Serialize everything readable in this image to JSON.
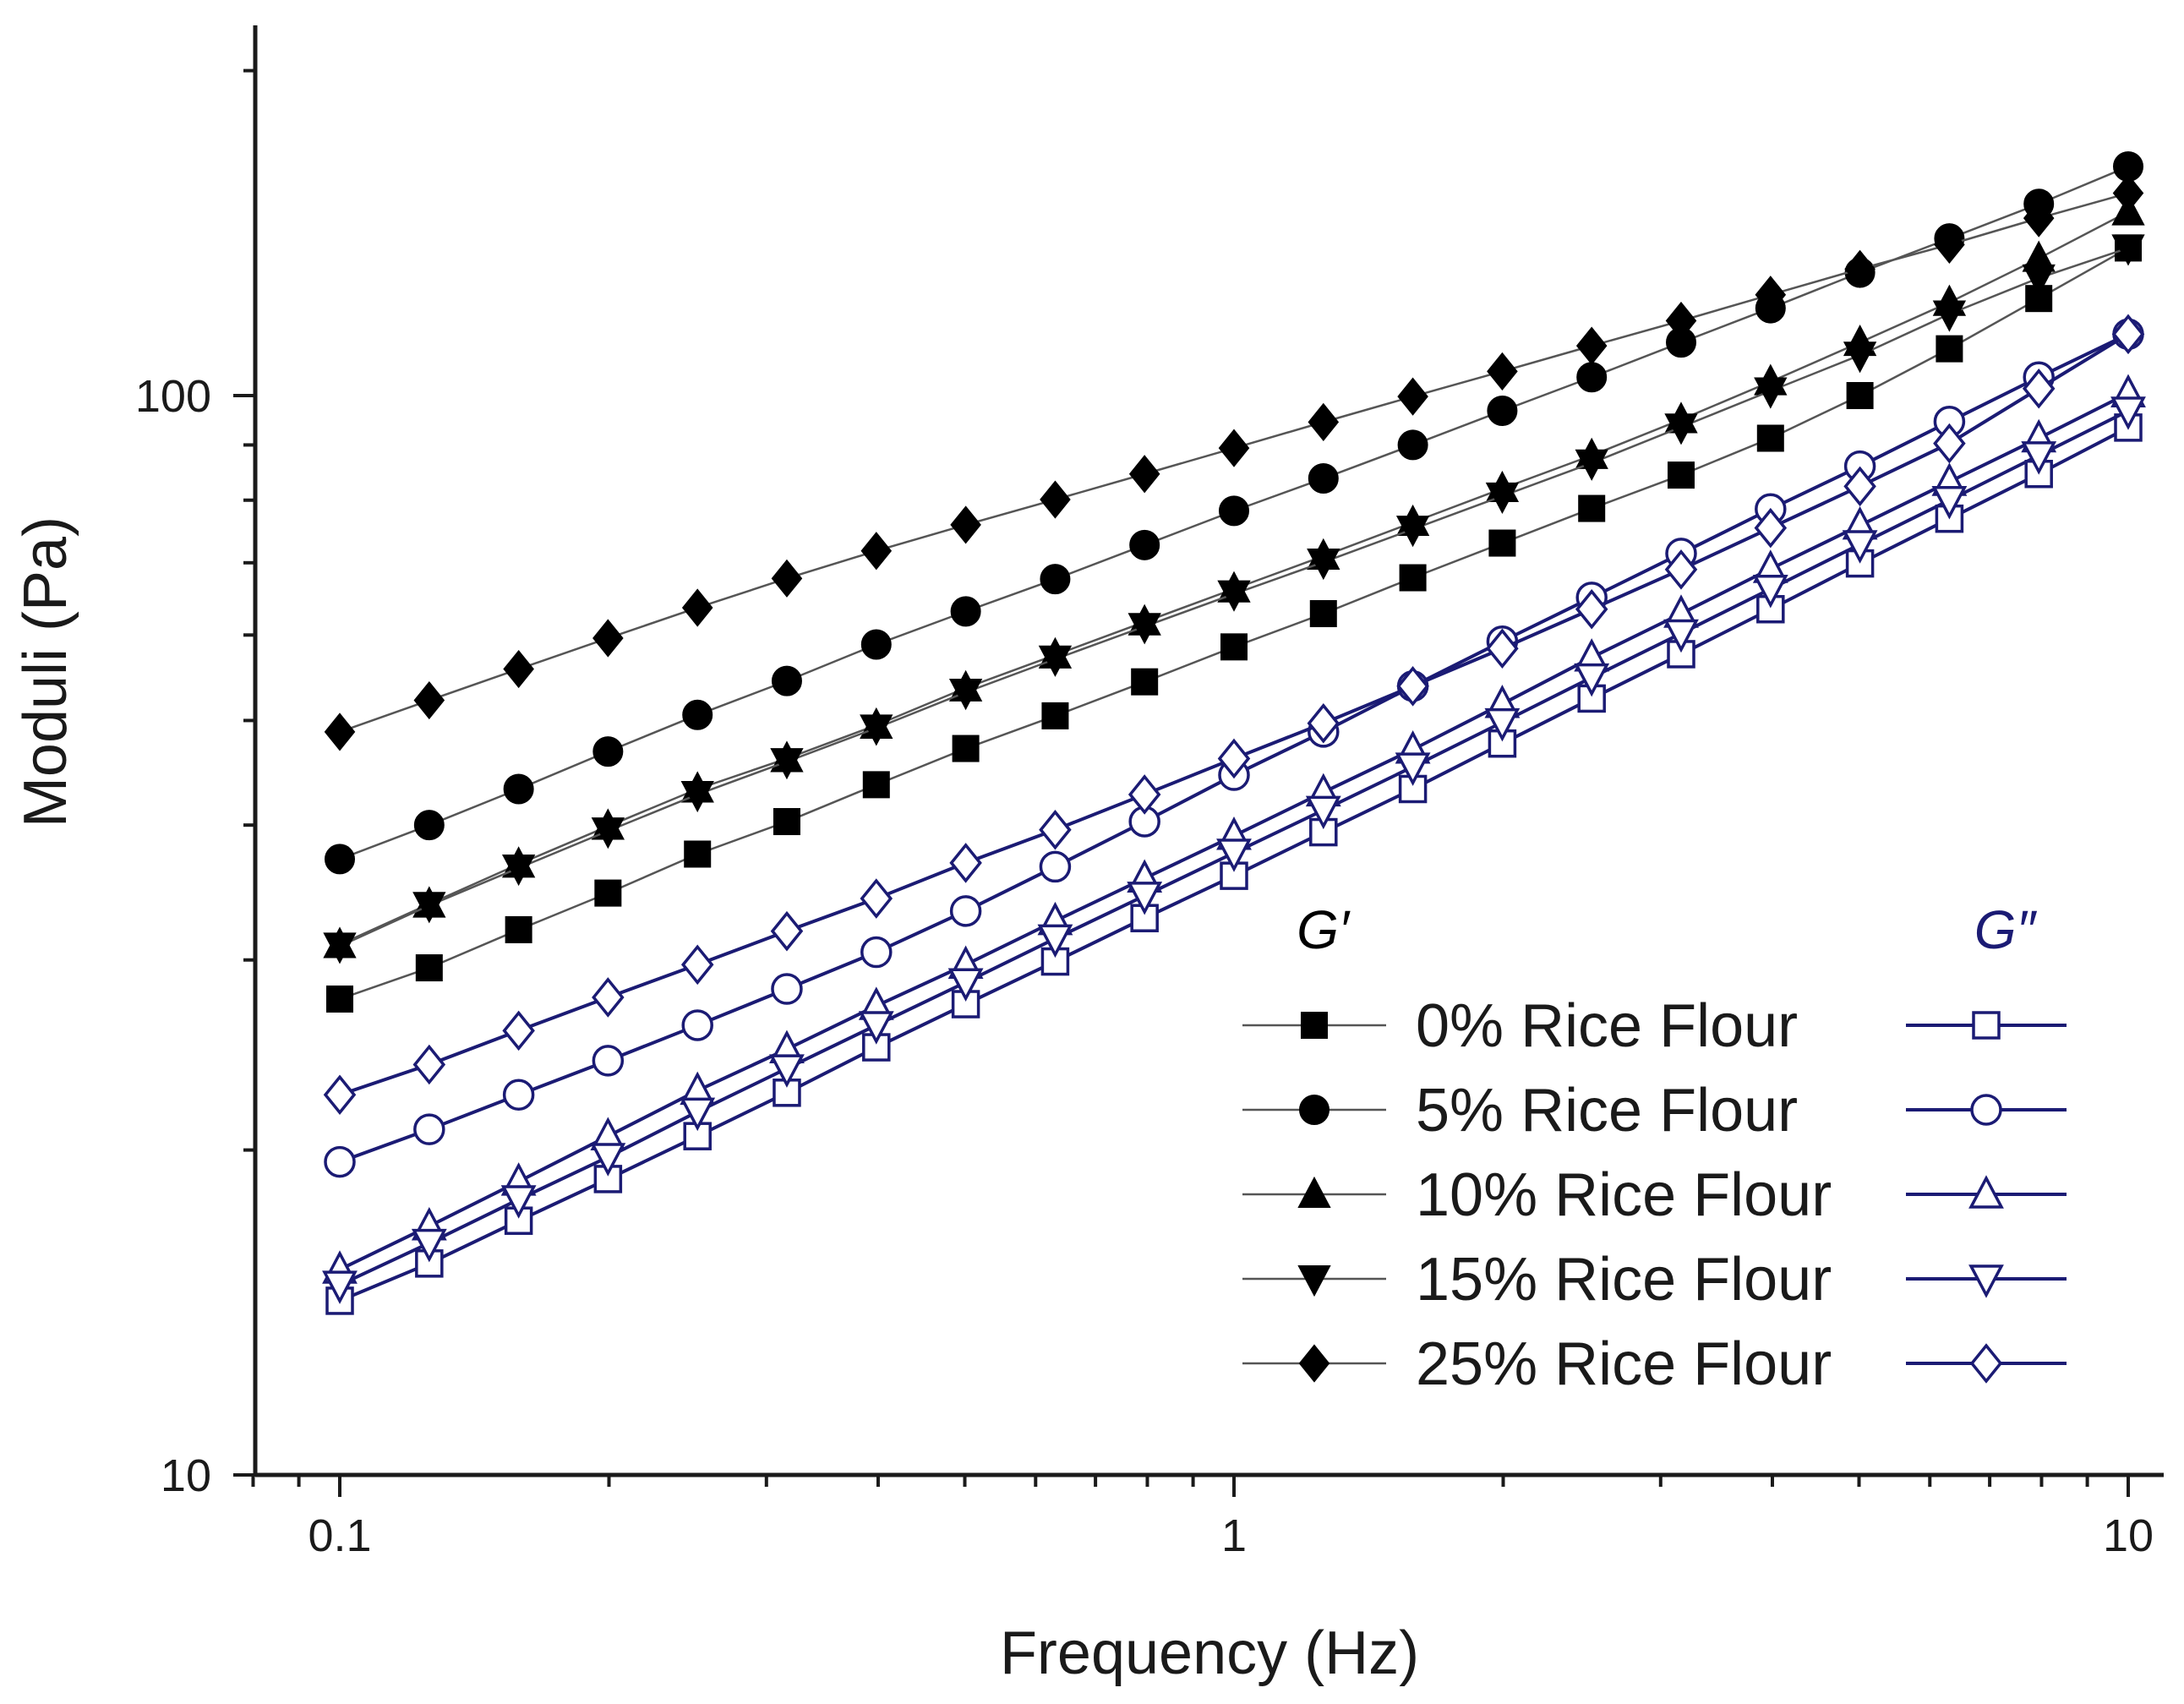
{
  "chart_data": {
    "type": "line",
    "title": "",
    "xlabel": "Frequency (Hz)",
    "ylabel": "Moduli (Pa)",
    "xscale": "log",
    "yscale": "log",
    "xlim": [
      0.08,
      10.5
    ],
    "ylim": [
      10,
      220
    ],
    "xticks": [
      {
        "value": 0.1,
        "label": "0.1"
      },
      {
        "value": 1,
        "label": "1"
      },
      {
        "value": 10,
        "label": "10"
      }
    ],
    "yticks": [
      {
        "value": 10,
        "label": "10"
      },
      {
        "value": 100,
        "label": "100"
      }
    ],
    "x": [
      0.1,
      0.1259,
      0.1585,
      0.1995,
      0.2512,
      0.3162,
      0.3981,
      0.5012,
      0.631,
      0.7943,
      1.0,
      1.2589,
      1.5849,
      1.9953,
      2.5119,
      3.1623,
      3.9811,
      5.0119,
      6.3096,
      7.9433,
      10.0
    ],
    "legend": {
      "position": "lower-right",
      "storage_header": "G′",
      "loss_header": "G″",
      "labels": [
        "0% Rice Flour",
        "5% Rice Flour",
        "10% Rice Flour",
        "15% Rice Flour",
        "25% Rice Flour"
      ]
    },
    "colors": {
      "storage": "#000000",
      "loss": "#1b1b74",
      "storage_line": "#555555"
    },
    "series": [
      {
        "name": "0% Rice Flour",
        "modulus": "G′",
        "marker": "square",
        "filled": true,
        "values": [
          27.6,
          29.5,
          32,
          34.6,
          37.6,
          40.3,
          43.6,
          47.1,
          50.5,
          54.3,
          58.5,
          62.8,
          67.8,
          73,
          78.6,
          84.4,
          91.3,
          100,
          110.5,
          123,
          137
        ]
      },
      {
        "name": "5% Rice Flour",
        "modulus": "G′",
        "marker": "circle",
        "filled": true,
        "values": [
          37.2,
          40,
          43.2,
          46.8,
          50.6,
          54.4,
          58.8,
          63.1,
          67.6,
          72.7,
          78.2,
          83.8,
          90,
          96.8,
          104,
          112,
          120.5,
          130,
          139.8,
          150.5,
          163
        ]
      },
      {
        "name": "10% Rice Flour",
        "modulus": "G′",
        "marker": "triangle-up",
        "filled": true,
        "values": [
          31,
          33.8,
          36.8,
          39.9,
          43.2,
          46.1,
          49.5,
          53.6,
          57.5,
          61.7,
          66.2,
          71,
          76.3,
          82,
          88,
          95,
          103,
          112,
          122,
          134,
          148
        ]
      },
      {
        "name": "15% Rice Flour",
        "modulus": "G′",
        "marker": "triangle-down",
        "filled": true,
        "values": [
          30.9,
          33.7,
          36.5,
          39.5,
          42.7,
          45.8,
          49.2,
          53.1,
          57,
          61.1,
          65.5,
          70.1,
          75.2,
          80.7,
          86.6,
          93.5,
          101,
          109,
          119,
          128.5,
          137
        ]
      },
      {
        "name": "25% Rice Flour",
        "modulus": "G′",
        "marker": "diamond",
        "filled": true,
        "values": [
          48.8,
          52.2,
          55.8,
          59.6,
          63.6,
          67.7,
          71.8,
          75.9,
          80.1,
          84.6,
          89.4,
          94.5,
          99.8,
          105.3,
          111.2,
          117.3,
          124,
          131,
          138,
          146,
          154
        ]
      },
      {
        "name": "0% Rice Flour",
        "modulus": "G″",
        "marker": "square",
        "filled": false,
        "values": [
          14.5,
          15.7,
          17.2,
          18.8,
          20.6,
          22.6,
          24.9,
          27.3,
          29.9,
          32.8,
          35.9,
          39.4,
          43.2,
          47.6,
          52.4,
          57.6,
          63.4,
          69.9,
          76.9,
          84.6,
          93.4
        ]
      },
      {
        "name": "5% Rice Flour",
        "modulus": "G″",
        "marker": "circle",
        "filled": false,
        "values": [
          19.5,
          20.9,
          22.5,
          24.2,
          26.1,
          28.2,
          30.5,
          33.3,
          36.6,
          40.3,
          44.5,
          48.8,
          53.8,
          59.2,
          65,
          71.4,
          78.5,
          86,
          94.6,
          104,
          114
        ]
      },
      {
        "name": "10% Rice Flour",
        "modulus": "G″",
        "marker": "triangle-up",
        "filled": false,
        "values": [
          15.5,
          17,
          18.7,
          20.6,
          22.7,
          24.8,
          27.2,
          29.7,
          32.6,
          35.7,
          39.1,
          42.9,
          47,
          51.8,
          57.2,
          62.8,
          69.1,
          75.8,
          83.2,
          91.3,
          100.5
        ]
      },
      {
        "name": "15% Rice Flour",
        "modulus": "G″",
        "marker": "triangle-down",
        "filled": false,
        "values": [
          15,
          16.4,
          18,
          19.7,
          21.7,
          23.8,
          26.1,
          28.6,
          31.4,
          34.4,
          37.7,
          41.3,
          45.3,
          49.8,
          54.8,
          60.2,
          66.2,
          72.8,
          80,
          88,
          96.8
        ]
      },
      {
        "name": "25% Rice Flour",
        "modulus": "G″",
        "marker": "diamond",
        "filled": false,
        "values": [
          22.5,
          24,
          25.8,
          27.7,
          29.7,
          31.9,
          34.2,
          36.9,
          39.6,
          42.7,
          46.1,
          49.7,
          53.8,
          58.3,
          63.4,
          69,
          75.4,
          82.4,
          90.3,
          101.5,
          114
        ]
      }
    ]
  }
}
